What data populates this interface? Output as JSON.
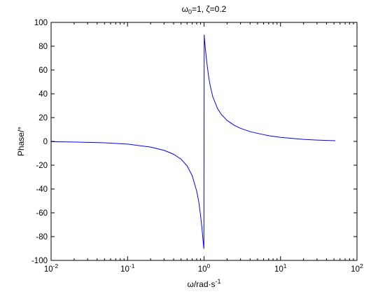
{
  "chart_data": {
    "type": "line",
    "title": {
      "omega": "ω",
      "sub": "0",
      "rest": "=1, ζ=0.2"
    },
    "xlabel": {
      "main": "ω/rad·s",
      "sup": "-1"
    },
    "ylabel": "Phase/°",
    "xscale": "log",
    "xlim": [
      0.01,
      100
    ],
    "ylim": [
      -100,
      100
    ],
    "x_ticks": [
      {
        "base": "10",
        "exp": "-2"
      },
      {
        "base": "10",
        "exp": "-1"
      },
      {
        "base": "10",
        "exp": "0"
      },
      {
        "base": "10",
        "exp": "1"
      },
      {
        "base": "10",
        "exp": "2"
      }
    ],
    "y_ticks": [
      "-100",
      "-80",
      "-60",
      "-40",
      "-20",
      "0",
      "20",
      "40",
      "60",
      "80",
      "100"
    ],
    "grid": false,
    "series": [
      {
        "color": "#0000ff",
        "x": [
          0.01,
          0.02,
          0.05,
          0.1,
          0.2,
          0.3,
          0.4,
          0.5,
          0.6,
          0.7,
          0.8,
          0.85,
          0.9,
          0.93,
          0.95,
          0.97,
          0.98,
          0.99,
          0.995,
          1.0,
          1.005,
          1.01,
          1.02,
          1.03,
          1.05,
          1.07,
          1.1,
          1.15,
          1.2,
          1.3,
          1.5,
          1.7,
          2.0,
          2.5,
          3,
          4,
          5,
          7,
          10,
          20,
          30,
          52
        ],
        "y": [
          -0.2,
          -0.5,
          -1.2,
          -2.3,
          -4.8,
          -7.5,
          -10.8,
          -14.9,
          -20.6,
          -28.8,
          -41.6,
          -50.1,
          -62.0,
          -70.4,
          -76.7,
          -83.0,
          -86.1,
          -89.1,
          -90.0,
          0,
          89.5,
          87.6,
          84.1,
          81.1,
          75.5,
          70.4,
          63.6,
          54.0,
          47.3,
          37.5,
          27.6,
          22.3,
          17.6,
          13.4,
          11.0,
          8.2,
          6.8,
          4.8,
          3.4,
          1.7,
          1.1,
          0.6
        ]
      }
    ]
  }
}
